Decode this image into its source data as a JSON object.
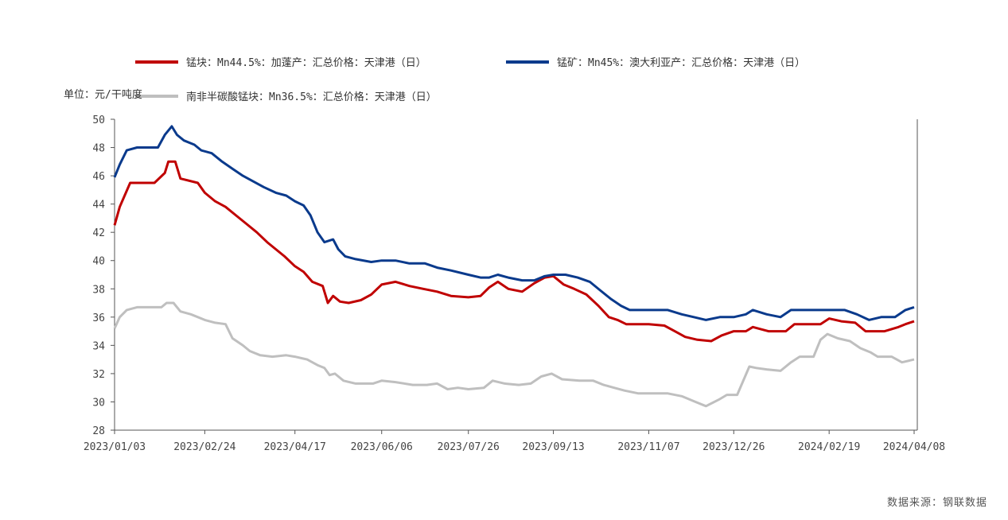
{
  "chart_data": {
    "type": "line",
    "unit_label": "单位：元/干吨度",
    "source": "数据来源：钢联数据",
    "ylim": [
      28,
      50
    ],
    "yticks": [
      28,
      30,
      32,
      34,
      36,
      38,
      40,
      42,
      44,
      46,
      48,
      50
    ],
    "xticks": [
      "2023/01/03",
      "2023/02/24",
      "2023/04/17",
      "2023/06/06",
      "2023/07/26",
      "2023/09/13",
      "2023/11/07",
      "2023/12/26",
      "2024/02/19",
      "2024/04/08"
    ],
    "grid": false,
    "legend_position": "top",
    "series": [
      {
        "name": "锰块：Mn44.5%：加蓬产：汇总价格：天津港（日）",
        "color": "#c00000",
        "points": [
          [
            "2023/01/03",
            42.5
          ],
          [
            "2023/01/06",
            43.8
          ],
          [
            "2023/01/12",
            45.5
          ],
          [
            "2023/01/26",
            45.5
          ],
          [
            "2023/02/01",
            46.2
          ],
          [
            "2023/02/03",
            47.0
          ],
          [
            "2023/02/07",
            47.0
          ],
          [
            "2023/02/10",
            45.8
          ],
          [
            "2023/02/20",
            45.5
          ],
          [
            "2023/02/24",
            44.8
          ],
          [
            "2023/03/02",
            44.2
          ],
          [
            "2023/03/08",
            43.8
          ],
          [
            "2023/03/14",
            43.2
          ],
          [
            "2023/03/20",
            42.6
          ],
          [
            "2023/03/26",
            42.0
          ],
          [
            "2023/04/01",
            41.3
          ],
          [
            "2023/04/06",
            40.8
          ],
          [
            "2023/04/11",
            40.3
          ],
          [
            "2023/04/17",
            39.6
          ],
          [
            "2023/04/22",
            39.2
          ],
          [
            "2023/04/27",
            38.5
          ],
          [
            "2023/05/03",
            38.2
          ],
          [
            "2023/05/06",
            37.0
          ],
          [
            "2023/05/09",
            37.5
          ],
          [
            "2023/05/13",
            37.1
          ],
          [
            "2023/05/18",
            37.0
          ],
          [
            "2023/05/25",
            37.2
          ],
          [
            "2023/05/31",
            37.6
          ],
          [
            "2023/06/06",
            38.3
          ],
          [
            "2023/06/14",
            38.5
          ],
          [
            "2023/06/22",
            38.2
          ],
          [
            "2023/06/30",
            38.0
          ],
          [
            "2023/07/08",
            37.8
          ],
          [
            "2023/07/16",
            37.5
          ],
          [
            "2023/07/26",
            37.4
          ],
          [
            "2023/08/02",
            37.5
          ],
          [
            "2023/08/07",
            38.1
          ],
          [
            "2023/08/12",
            38.5
          ],
          [
            "2023/08/18",
            38.0
          ],
          [
            "2023/08/26",
            37.8
          ],
          [
            "2023/09/02",
            38.4
          ],
          [
            "2023/09/08",
            38.8
          ],
          [
            "2023/09/13",
            38.9
          ],
          [
            "2023/09/19",
            38.3
          ],
          [
            "2023/09/25",
            38.0
          ],
          [
            "2023/10/02",
            37.6
          ],
          [
            "2023/10/09",
            36.8
          ],
          [
            "2023/10/15",
            36.0
          ],
          [
            "2023/10/20",
            35.8
          ],
          [
            "2023/10/25",
            35.5
          ],
          [
            "2023/11/07",
            35.5
          ],
          [
            "2023/11/16",
            35.4
          ],
          [
            "2023/11/22",
            35.0
          ],
          [
            "2023/11/28",
            34.6
          ],
          [
            "2023/12/05",
            34.4
          ],
          [
            "2023/12/13",
            34.3
          ],
          [
            "2023/12/19",
            34.7
          ],
          [
            "2023/12/26",
            35.0
          ],
          [
            "2024/01/02",
            35.0
          ],
          [
            "2024/01/06",
            35.3
          ],
          [
            "2024/01/15",
            35.0
          ],
          [
            "2024/01/25",
            35.0
          ],
          [
            "2024/01/30",
            35.5
          ],
          [
            "2024/02/14",
            35.5
          ],
          [
            "2024/02/19",
            35.9
          ],
          [
            "2024/02/26",
            35.7
          ],
          [
            "2024/03/05",
            35.6
          ],
          [
            "2024/03/11",
            35.0
          ],
          [
            "2024/03/22",
            35.0
          ],
          [
            "2024/03/30",
            35.3
          ],
          [
            "2024/04/03",
            35.5
          ],
          [
            "2024/04/08",
            35.7
          ]
        ]
      },
      {
        "name": "锰矿：Mn45%：澳大利亚产：汇总价格：天津港（日）",
        "color": "#0a3a8c",
        "points": [
          [
            "2023/01/03",
            45.9
          ],
          [
            "2023/01/06",
            46.8
          ],
          [
            "2023/01/10",
            47.8
          ],
          [
            "2023/01/16",
            48.0
          ],
          [
            "2023/01/28",
            48.0
          ],
          [
            "2023/02/01",
            48.9
          ],
          [
            "2023/02/05",
            49.5
          ],
          [
            "2023/02/08",
            48.9
          ],
          [
            "2023/02/12",
            48.5
          ],
          [
            "2023/02/18",
            48.2
          ],
          [
            "2023/02/22",
            47.8
          ],
          [
            "2023/02/28",
            47.6
          ],
          [
            "2023/03/06",
            47.0
          ],
          [
            "2023/03/12",
            46.5
          ],
          [
            "2023/03/18",
            46.0
          ],
          [
            "2023/03/24",
            45.6
          ],
          [
            "2023/03/30",
            45.2
          ],
          [
            "2023/04/06",
            44.8
          ],
          [
            "2023/04/12",
            44.6
          ],
          [
            "2023/04/17",
            44.2
          ],
          [
            "2023/04/22",
            43.9
          ],
          [
            "2023/04/26",
            43.2
          ],
          [
            "2023/04/30",
            42.0
          ],
          [
            "2023/05/04",
            41.3
          ],
          [
            "2023/05/09",
            41.5
          ],
          [
            "2023/05/12",
            40.8
          ],
          [
            "2023/05/16",
            40.3
          ],
          [
            "2023/05/22",
            40.1
          ],
          [
            "2023/05/31",
            39.9
          ],
          [
            "2023/06/06",
            40.0
          ],
          [
            "2023/06/14",
            40.0
          ],
          [
            "2023/06/22",
            39.8
          ],
          [
            "2023/07/01",
            39.8
          ],
          [
            "2023/07/08",
            39.5
          ],
          [
            "2023/07/16",
            39.3
          ],
          [
            "2023/07/26",
            39.0
          ],
          [
            "2023/08/02",
            38.8
          ],
          [
            "2023/08/07",
            38.8
          ],
          [
            "2023/08/12",
            39.0
          ],
          [
            "2023/08/18",
            38.8
          ],
          [
            "2023/08/26",
            38.6
          ],
          [
            "2023/09/02",
            38.6
          ],
          [
            "2023/09/08",
            38.9
          ],
          [
            "2023/09/13",
            39.0
          ],
          [
            "2023/09/20",
            39.0
          ],
          [
            "2023/09/27",
            38.8
          ],
          [
            "2023/10/04",
            38.5
          ],
          [
            "2023/10/10",
            37.9
          ],
          [
            "2023/10/16",
            37.3
          ],
          [
            "2023/10/22",
            36.8
          ],
          [
            "2023/10/27",
            36.5
          ],
          [
            "2023/11/07",
            36.5
          ],
          [
            "2023/11/18",
            36.5
          ],
          [
            "2023/11/26",
            36.2
          ],
          [
            "2023/12/03",
            36.0
          ],
          [
            "2023/12/10",
            35.8
          ],
          [
            "2023/12/18",
            36.0
          ],
          [
            "2023/12/26",
            36.0
          ],
          [
            "2024/01/02",
            36.2
          ],
          [
            "2024/01/06",
            36.5
          ],
          [
            "2024/01/14",
            36.2
          ],
          [
            "2024/01/22",
            36.0
          ],
          [
            "2024/01/28",
            36.5
          ],
          [
            "2024/02/14",
            36.5
          ],
          [
            "2024/02/19",
            36.5
          ],
          [
            "2024/02/28",
            36.5
          ],
          [
            "2024/03/06",
            36.2
          ],
          [
            "2024/03/13",
            35.8
          ],
          [
            "2024/03/20",
            36.0
          ],
          [
            "2024/03/28",
            36.0
          ],
          [
            "2024/04/03",
            36.5
          ],
          [
            "2024/04/08",
            36.7
          ]
        ]
      },
      {
        "name": "南非半碳酸锰块：Mn36.5%：汇总价格：天津港（日）",
        "color": "#bfbfbf",
        "points": [
          [
            "2023/01/03",
            35.2
          ],
          [
            "2023/01/06",
            36.0
          ],
          [
            "2023/01/10",
            36.5
          ],
          [
            "2023/01/16",
            36.7
          ],
          [
            "2023/01/30",
            36.7
          ],
          [
            "2023/02/02",
            37.0
          ],
          [
            "2023/02/06",
            37.0
          ],
          [
            "2023/02/10",
            36.4
          ],
          [
            "2023/02/16",
            36.2
          ],
          [
            "2023/02/24",
            35.8
          ],
          [
            "2023/03/02",
            35.6
          ],
          [
            "2023/03/08",
            35.5
          ],
          [
            "2023/03/12",
            34.5
          ],
          [
            "2023/03/18",
            34.0
          ],
          [
            "2023/03/22",
            33.6
          ],
          [
            "2023/03/28",
            33.3
          ],
          [
            "2023/04/04",
            33.2
          ],
          [
            "2023/04/12",
            33.3
          ],
          [
            "2023/04/17",
            33.2
          ],
          [
            "2023/04/24",
            33.0
          ],
          [
            "2023/04/30",
            32.6
          ],
          [
            "2023/05/04",
            32.4
          ],
          [
            "2023/05/07",
            31.9
          ],
          [
            "2023/05/10",
            32.0
          ],
          [
            "2023/05/15",
            31.5
          ],
          [
            "2023/05/22",
            31.3
          ],
          [
            "2023/06/01",
            31.3
          ],
          [
            "2023/06/06",
            31.5
          ],
          [
            "2023/06/14",
            31.4
          ],
          [
            "2023/06/24",
            31.2
          ],
          [
            "2023/07/02",
            31.2
          ],
          [
            "2023/07/08",
            31.3
          ],
          [
            "2023/07/14",
            30.9
          ],
          [
            "2023/07/20",
            31.0
          ],
          [
            "2023/07/26",
            30.9
          ],
          [
            "2023/08/04",
            31.0
          ],
          [
            "2023/08/09",
            31.5
          ],
          [
            "2023/08/16",
            31.3
          ],
          [
            "2023/08/24",
            31.2
          ],
          [
            "2023/08/31",
            31.3
          ],
          [
            "2023/09/06",
            31.8
          ],
          [
            "2023/09/12",
            32.0
          ],
          [
            "2023/09/18",
            31.6
          ],
          [
            "2023/09/28",
            31.5
          ],
          [
            "2023/10/06",
            31.5
          ],
          [
            "2023/10/12",
            31.2
          ],
          [
            "2023/10/18",
            31.0
          ],
          [
            "2023/10/24",
            30.8
          ],
          [
            "2023/11/01",
            30.6
          ],
          [
            "2023/11/10",
            30.6
          ],
          [
            "2023/11/18",
            30.6
          ],
          [
            "2023/11/26",
            30.4
          ],
          [
            "2023/12/04",
            30.0
          ],
          [
            "2023/12/10",
            29.7
          ],
          [
            "2023/12/18",
            30.2
          ],
          [
            "2023/12/22",
            30.5
          ],
          [
            "2023/12/28",
            30.5
          ],
          [
            "2024/01/04",
            32.5
          ],
          [
            "2024/01/08",
            32.4
          ],
          [
            "2024/01/14",
            32.3
          ],
          [
            "2024/01/22",
            32.2
          ],
          [
            "2024/01/28",
            32.8
          ],
          [
            "2024/02/02",
            33.2
          ],
          [
            "2024/02/10",
            33.2
          ],
          [
            "2024/02/14",
            34.4
          ],
          [
            "2024/02/18",
            34.8
          ],
          [
            "2024/02/24",
            34.5
          ],
          [
            "2024/03/02",
            34.3
          ],
          [
            "2024/03/08",
            33.8
          ],
          [
            "2024/03/14",
            33.5
          ],
          [
            "2024/03/18",
            33.2
          ],
          [
            "2024/03/26",
            33.2
          ],
          [
            "2024/04/01",
            32.8
          ],
          [
            "2024/04/08",
            33.0
          ]
        ]
      }
    ]
  }
}
